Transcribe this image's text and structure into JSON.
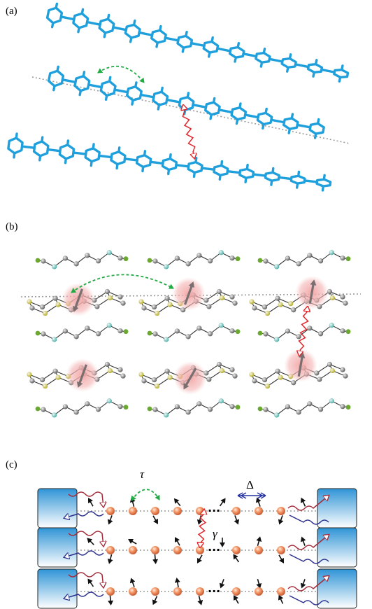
{
  "panels": {
    "a": {
      "label": "(a)"
    },
    "b": {
      "label": "(b)"
    },
    "c": {
      "label": "(c)",
      "tau": "τ",
      "gamma": "γ",
      "delta": "Δ",
      "ellipsis": "···",
      "spin_angles": [
        [
          -30,
          200,
          -15,
          150,
          -40,
          195,
          35,
          160,
          -20,
          200,
          -25
        ],
        [
          -45,
          195,
          -60,
          175,
          -30,
          210,
          180,
          -35,
          15,
          150,
          -20
        ],
        [
          -35,
          175,
          -20,
          205,
          -10,
          165,
          200,
          -30,
          165,
          -25,
          200
        ]
      ]
    }
  },
  "colors": {
    "molecule_blue": "#1fa0dc",
    "hop_green": "#22aa44",
    "coupling_red": "#e0262a",
    "atom_dark": "#5f5f5f",
    "atom_yellow": "#b6ad2a",
    "atom_cyan": "#4fb0a8",
    "atom_green": "#6aa832",
    "spin_glow": "#f2a4a4",
    "site_orange": "#f08a5c",
    "wave_red": "#a32838",
    "wave_blue": "#2b2f8c",
    "reservoir_blue": "#2f94d6",
    "delta_blue": "#2430a0"
  }
}
